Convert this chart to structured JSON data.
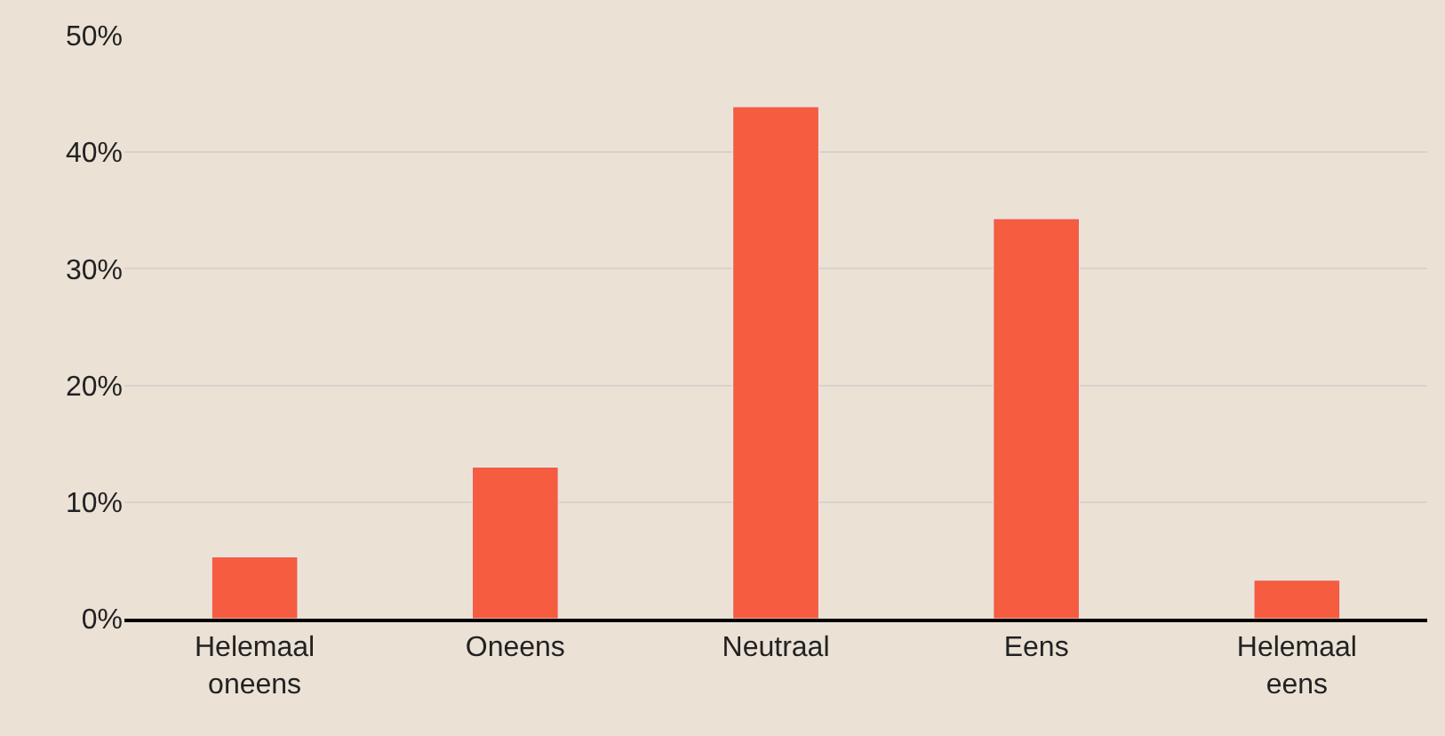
{
  "chart_data": {
    "type": "bar",
    "categories": [
      "Helemaal oneens",
      "Oneens",
      "Neutraal",
      "Eens",
      "Helemaal eens"
    ],
    "values": [
      5.3,
      13.0,
      43.9,
      34.3,
      3.3
    ],
    "color": "#f55c40",
    "ylim": [
      0,
      50
    ],
    "yticks": [
      {
        "value": 0,
        "label": "0%"
      },
      {
        "value": 10,
        "label": "10%"
      },
      {
        "value": 20,
        "label": "20%"
      },
      {
        "value": 30,
        "label": "30%"
      },
      {
        "value": 40,
        "label": "40%"
      },
      {
        "value": 50,
        "label": "50%"
      }
    ],
    "grid": "y"
  }
}
